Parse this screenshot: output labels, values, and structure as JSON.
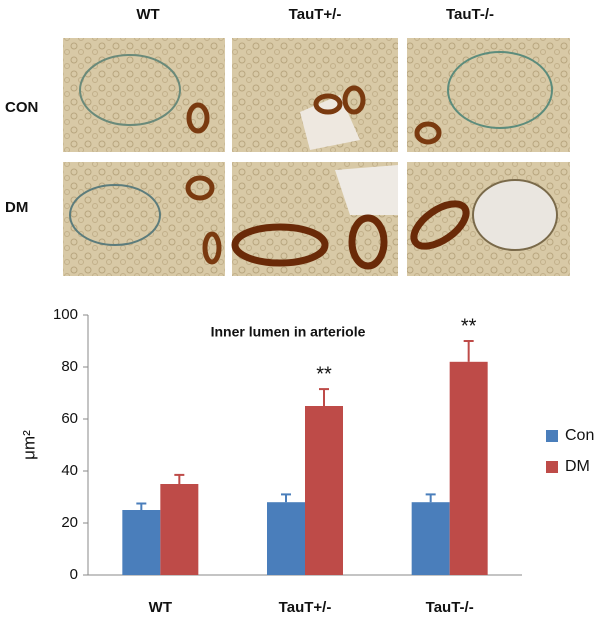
{
  "micrograph": {
    "columns": [
      "WT",
      "TauT+/-",
      "TauT-/-"
    ],
    "rows": [
      "CON",
      "DM"
    ]
  },
  "chart_data": {
    "type": "bar",
    "title": "Inner lumen in arteriole",
    "y_label": "μm²",
    "categories": [
      "WT",
      "TauT+/-",
      "TauT-/-"
    ],
    "series": [
      {
        "name": "Con",
        "color": "#4a7ebb",
        "values": [
          25,
          28,
          28
        ],
        "errors": [
          2.5,
          3,
          3
        ]
      },
      {
        "name": "DM",
        "color": "#be4b48",
        "values": [
          35,
          65,
          82
        ],
        "errors": [
          3.5,
          6.5,
          8
        ],
        "significance": [
          null,
          "**",
          "**"
        ]
      }
    ],
    "ylim": [
      0,
      100
    ],
    "yticks": [
      0,
      20,
      40,
      60,
      80,
      100
    ],
    "grid": false,
    "legend": "right"
  }
}
